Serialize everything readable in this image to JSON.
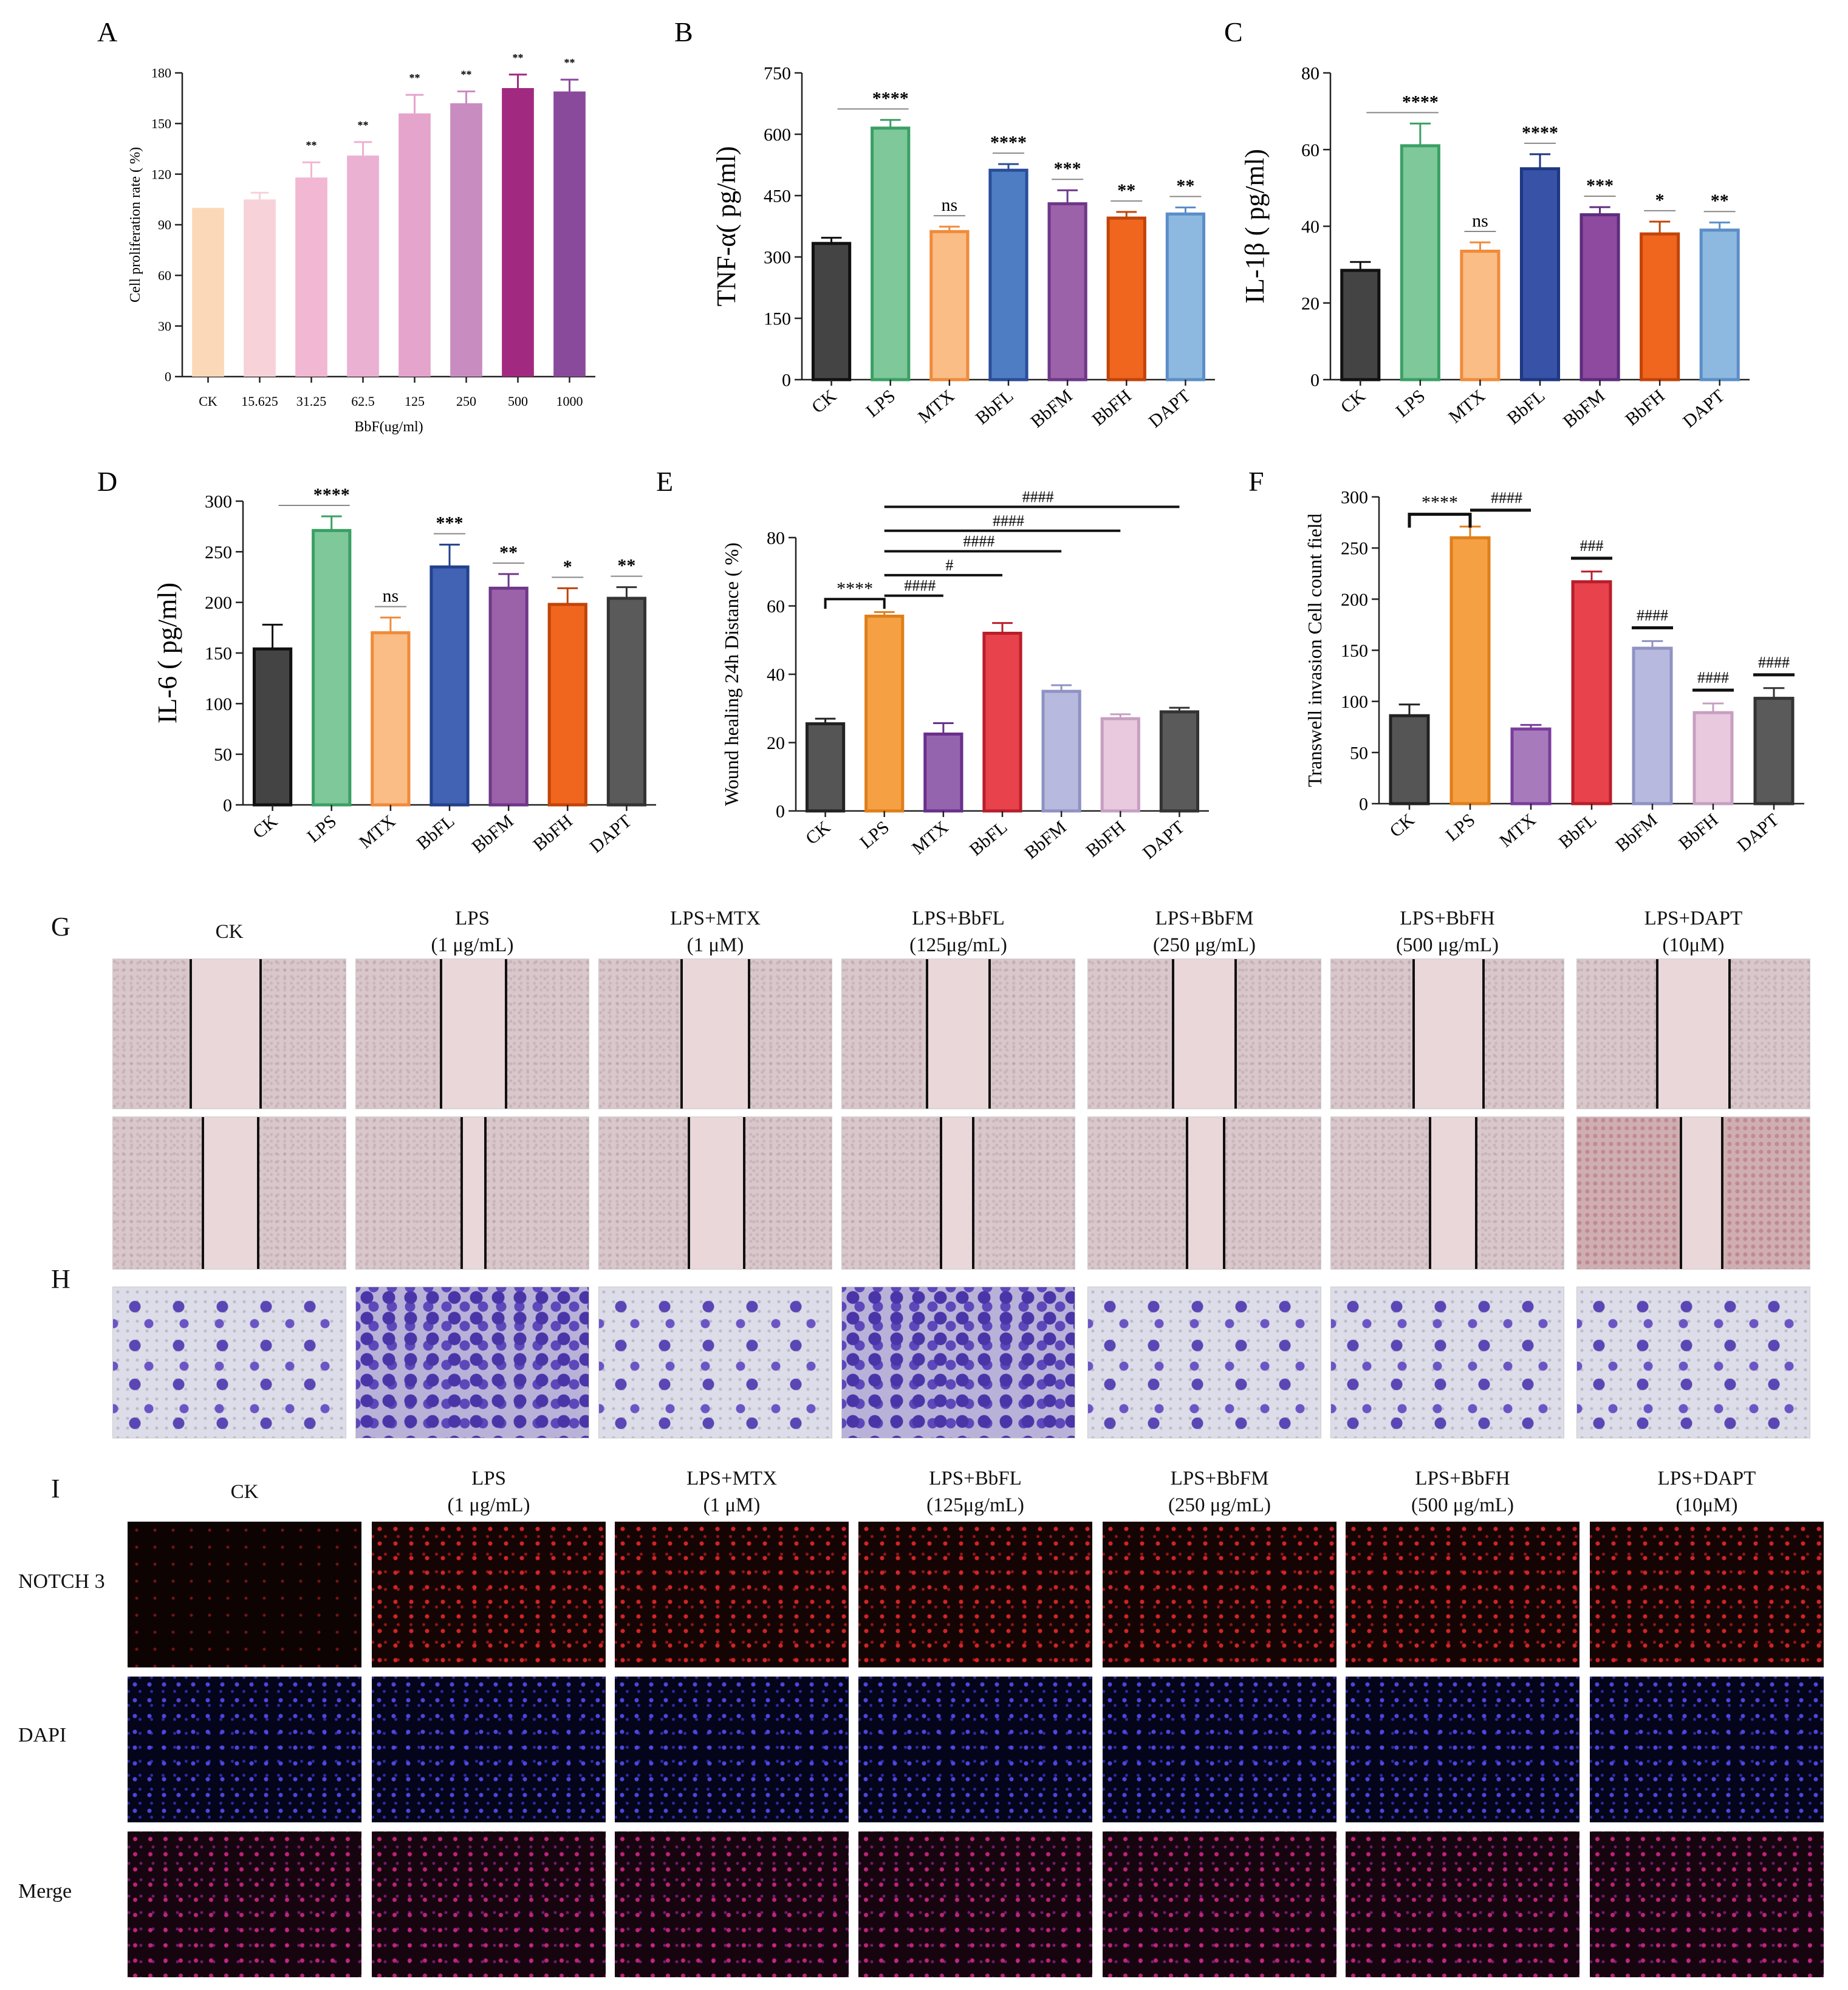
{
  "chart_data": [
    {
      "panel": "A",
      "type": "bar",
      "ylabel": "Cell proliferation rate ( %)",
      "xlabel": "BbF(ug/ml)",
      "ylim": [
        0,
        180
      ],
      "yticks": [
        0,
        30,
        60,
        90,
        120,
        150,
        180
      ],
      "categories": [
        "CK",
        "15.625",
        "31.25",
        "62.5",
        "125",
        "250",
        "500",
        "1000"
      ],
      "values": [
        100,
        105,
        118,
        131,
        156,
        162,
        171,
        169
      ],
      "errors": [
        0,
        4,
        9,
        8,
        11,
        7,
        8,
        7
      ],
      "colors": [
        "#fbd9b8",
        "#f7d2d8",
        "#f2b7d2",
        "#ebb1d3",
        "#e4a4cc",
        "#c98cc0",
        "#a1297f",
        "#8a4a9c"
      ],
      "annotations": [
        "",
        "",
        "**",
        "**",
        "**",
        "**",
        "**",
        "**"
      ]
    },
    {
      "panel": "B",
      "type": "bar",
      "ylabel": "TNF-α( pg/ml)",
      "ylim": [
        0,
        750
      ],
      "yticks": [
        0,
        150,
        300,
        450,
        600,
        750
      ],
      "categories": [
        "CK",
        "LPS",
        "MTX",
        "BbFL",
        "BbFM",
        "BbFH",
        "DAPT"
      ],
      "values": [
        333,
        615,
        362,
        512,
        430,
        395,
        405
      ],
      "errors": [
        14,
        20,
        12,
        15,
        33,
        15,
        16
      ],
      "colors": [
        "#444444",
        "#7fc89a",
        "#f9bd85",
        "#4f7dc4",
        "#9b62aa",
        "#f0661f",
        "#8db8e0"
      ],
      "edge_colors": [
        "#111111",
        "#3aa064",
        "#f08a3a",
        "#2a4d9a",
        "#6e3788",
        "#c14408",
        "#5b8ec8"
      ],
      "annotations": [
        "",
        "****",
        "ns",
        "****",
        "***",
        "**",
        "**"
      ]
    },
    {
      "panel": "C",
      "type": "bar",
      "ylabel": "IL-1β ( pg/ml)",
      "ylim": [
        0,
        80
      ],
      "yticks": [
        0,
        20,
        40,
        60,
        80
      ],
      "categories": [
        "CK",
        "LPS",
        "MTX",
        "BbFL",
        "BbFM",
        "BbFH",
        "DAPT"
      ],
      "values": [
        28.5,
        61,
        33.5,
        55,
        43,
        38,
        39
      ],
      "errors": [
        2.2,
        5.8,
        2.3,
        3.8,
        2,
        3.2,
        2
      ],
      "colors": [
        "#444444",
        "#7fc89a",
        "#f9bd85",
        "#3852a8",
        "#8e4a9e",
        "#f0661f",
        "#8db8e0"
      ],
      "edge_colors": [
        "#111111",
        "#3aa064",
        "#f08a3a",
        "#1e3780",
        "#5f2c7c",
        "#c14408",
        "#5b8ec8"
      ],
      "annotations": [
        "",
        "****",
        "ns",
        "****",
        "***",
        "*",
        "**"
      ]
    },
    {
      "panel": "D",
      "type": "bar",
      "ylabel": "IL-6 ( pg/ml)",
      "ylim": [
        0,
        300
      ],
      "yticks": [
        0,
        50,
        100,
        150,
        200,
        250,
        300
      ],
      "categories": [
        "CK",
        "LPS",
        "MTX",
        "BbFL",
        "BbFM",
        "BbFH",
        "DAPT"
      ],
      "values": [
        154,
        271,
        170,
        235,
        214,
        198,
        204
      ],
      "errors": [
        24,
        14,
        15,
        22,
        14,
        16,
        11
      ],
      "colors": [
        "#444444",
        "#7fc89a",
        "#f9bd85",
        "#4263b4",
        "#9b62aa",
        "#f0661f",
        "#5a5a5a"
      ],
      "edge_colors": [
        "#111111",
        "#3aa064",
        "#f08a3a",
        "#23418c",
        "#6e3788",
        "#c14408",
        "#333333"
      ],
      "annotations": [
        "",
        "****",
        "ns",
        "***",
        "**",
        "*",
        "**"
      ]
    },
    {
      "panel": "E",
      "type": "bar",
      "ylabel": "Wound healing 24h Distance ( %)",
      "ylim": [
        0,
        80
      ],
      "yticks": [
        0,
        20,
        40,
        60,
        80
      ],
      "categories": [
        "CK",
        "LPS",
        "MTX",
        "BbFL",
        "BbFM",
        "BbFH",
        "DAPT"
      ],
      "values": [
        25.5,
        57,
        22.5,
        52,
        35,
        27,
        29
      ],
      "errors": [
        1.5,
        1.2,
        3.2,
        3,
        1.8,
        1.3,
        1.2
      ],
      "colors": [
        "#555555",
        "#f5a043",
        "#9464ae",
        "#e8424c",
        "#b7b9de",
        "#e8c9de",
        "#5a5a5a"
      ],
      "edge_colors": [
        "#222222",
        "#e07e1a",
        "#6a2f8c",
        "#b81e2a",
        "#8f92c2",
        "#c79fc0",
        "#333333"
      ],
      "annotations": [
        "****",
        "####",
        "#",
        "####",
        "####",
        "####"
      ]
    },
    {
      "panel": "F",
      "type": "bar",
      "ylabel": "Transwell invasion Cell count field",
      "ylim": [
        0,
        300
      ],
      "yticks": [
        0,
        50,
        100,
        150,
        200,
        250,
        300
      ],
      "categories": [
        "CK",
        "LPS",
        "MTX",
        "BbFL",
        "BbFM",
        "BbFH",
        "DAPT"
      ],
      "values": [
        86,
        260,
        73,
        217,
        152,
        89,
        103
      ],
      "errors": [
        11,
        11,
        4,
        10,
        7,
        9,
        10
      ],
      "colors": [
        "#555555",
        "#f5a043",
        "#a77abc",
        "#e8424c",
        "#b7b9de",
        "#e8c9de",
        "#5a5a5a"
      ],
      "edge_colors": [
        "#222222",
        "#e07e1a",
        "#7a3d9c",
        "#b81e2a",
        "#8f92c2",
        "#c79fc0",
        "#333333"
      ],
      "annotations": [
        "****",
        "####",
        "###",
        "####",
        "####",
        "####"
      ]
    }
  ],
  "panels": {
    "G": "G",
    "H": "H",
    "I": "I"
  },
  "gh_columns": [
    {
      "line1": "CK",
      "line2": ""
    },
    {
      "line1": "LPS",
      "line2": "(1 μg/mL)"
    },
    {
      "line1": "LPS+MTX",
      "line2": "(1 μM)"
    },
    {
      "line1": "LPS+BbFL",
      "line2": "(125μg/mL)"
    },
    {
      "line1": "LPS+BbFM",
      "line2": "(250 μg/mL)"
    },
    {
      "line1": "LPS+BbFH",
      "line2": "(500 μg/mL)"
    },
    {
      "line1": "LPS+DAPT",
      "line2": "(10μM)"
    }
  ],
  "i_rows": [
    "NOTCH 3",
    "DAPI",
    "Merge"
  ]
}
